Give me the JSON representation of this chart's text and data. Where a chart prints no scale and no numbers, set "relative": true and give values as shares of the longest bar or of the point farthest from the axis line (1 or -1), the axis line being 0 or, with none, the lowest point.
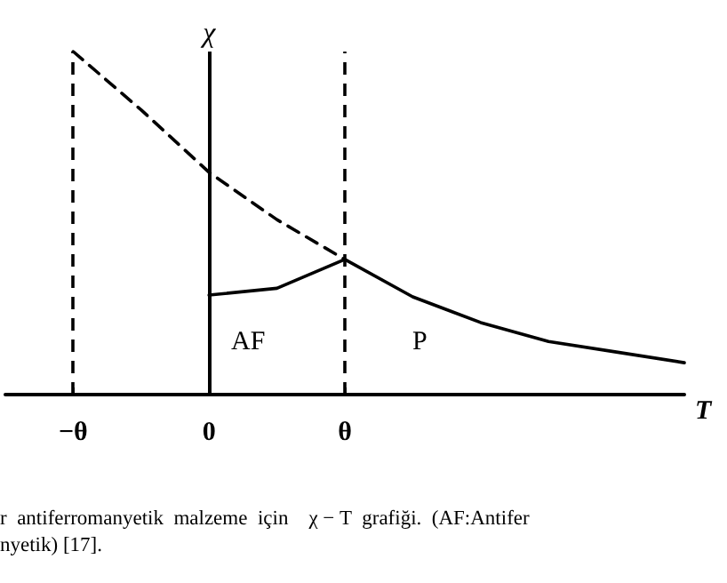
{
  "chart_data": {
    "type": "line",
    "relative": true,
    "xlabel": "T",
    "categories": [
      null,
      "−θ",
      null,
      "0",
      null,
      "θ",
      null,
      null,
      null,
      null,
      null
    ],
    "series": [
      {
        "color": "#000000",
        "line_style": "dashed",
        "values": [
          null,
          1.0,
          0.83,
          0.648,
          0.51,
          0.394,
          null,
          null,
          null,
          null,
          null
        ]
      },
      {
        "color": "#000000",
        "line_style": "solid",
        "values": [
          null,
          null,
          null,
          null,
          null,
          0.394,
          0.285,
          0.21,
          0.155,
          0.124,
          0.093
        ]
      },
      {
        "color": "#000000",
        "line_style": "solid",
        "values": [
          null,
          null,
          null,
          0.29,
          0.31,
          0.394,
          null,
          null,
          null,
          null,
          null
        ]
      }
    ],
    "ref_lines": [
      {
        "axis": "x",
        "value": "−θ",
        "line_style": "dashed",
        "color": "#000000"
      },
      {
        "axis": "x",
        "value": "0",
        "line_style": "solid",
        "color": "#000000",
        "label": "χ"
      },
      {
        "axis": "x",
        "value": "θ",
        "line_style": "dashed",
        "color": "#000000"
      }
    ],
    "annotations": [
      "AF",
      "P",
      "r  antiferromanyetik  malzeme  için    χ − T  grafiği.  (AF:Antifer",
      "nyetik) [17]."
    ],
    "grid": false,
    "marker": "none"
  }
}
